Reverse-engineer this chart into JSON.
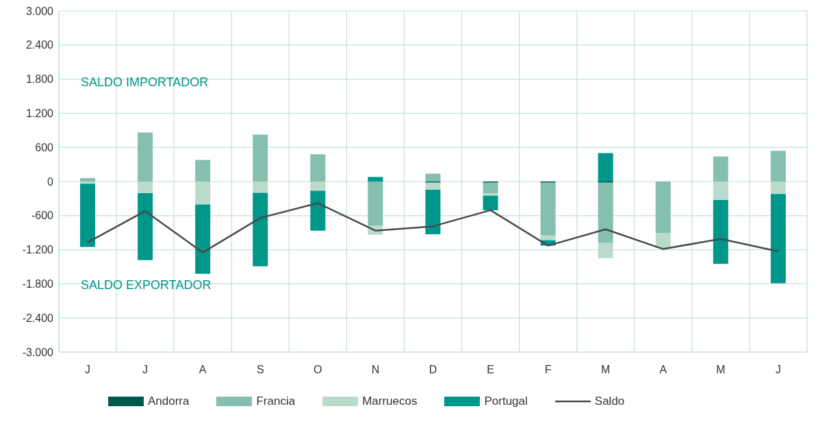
{
  "chart_data": {
    "type": "bar",
    "stacked": true,
    "categories": [
      "J",
      "J",
      "A",
      "S",
      "O",
      "N",
      "D",
      "E",
      "F",
      "M",
      "A",
      "M",
      "J"
    ],
    "series": [
      {
        "name": "Andorra",
        "color": "#00594f",
        "values": [
          null,
          null,
          null,
          null,
          null,
          null,
          -20,
          -20,
          -20,
          -20,
          null,
          null,
          null
        ]
      },
      {
        "name": "Francia",
        "color": "#85bfb0",
        "values": [
          60,
          860,
          380,
          824,
          480,
          -780,
          140,
          -190,
          -928,
          -1060,
          -904,
          440,
          540
        ]
      },
      {
        "name": "Marruecos",
        "color": "#badbcb",
        "values": [
          -40,
          -204,
          -404,
          -200,
          -164,
          -156,
          -124,
          -40,
          -84,
          -268,
          -264,
          -324,
          -220
        ]
      },
      {
        "name": "Portugal",
        "color": "#00968a",
        "values": [
          -1110,
          -1180,
          -1220,
          -1290,
          -700,
          80,
          -784,
          -256,
          -96,
          500,
          null,
          -1124,
          -1568
        ]
      },
      {
        "name": "Saldo",
        "type": "line",
        "color": "#4a4a4a",
        "values": [
          -1070,
          -520,
          -1248,
          -640,
          -380,
          -864,
          -788,
          -504,
          -1128,
          -840,
          -1188,
          -1008,
          -1228
        ]
      }
    ],
    "ylim": [
      -3000,
      3000
    ],
    "yticks": [
      {
        "value": 3000,
        "label": "3.000"
      },
      {
        "value": 2400,
        "label": "2.400"
      },
      {
        "value": 1800,
        "label": "1.800"
      },
      {
        "value": 1200,
        "label": "1.200"
      },
      600,
      0,
      -600,
      {
        "value": -1200,
        "label": "-1.200"
      },
      {
        "value": -1800,
        "label": "-1.800"
      },
      {
        "value": -2400,
        "label": "-2.400"
      },
      {
        "value": -3000,
        "label": "-3.000"
      }
    ],
    "grid": true,
    "legend": "bottom",
    "annotations": [
      "SALDO IMPORTADOR",
      "SALDO EXPORTADOR"
    ]
  }
}
